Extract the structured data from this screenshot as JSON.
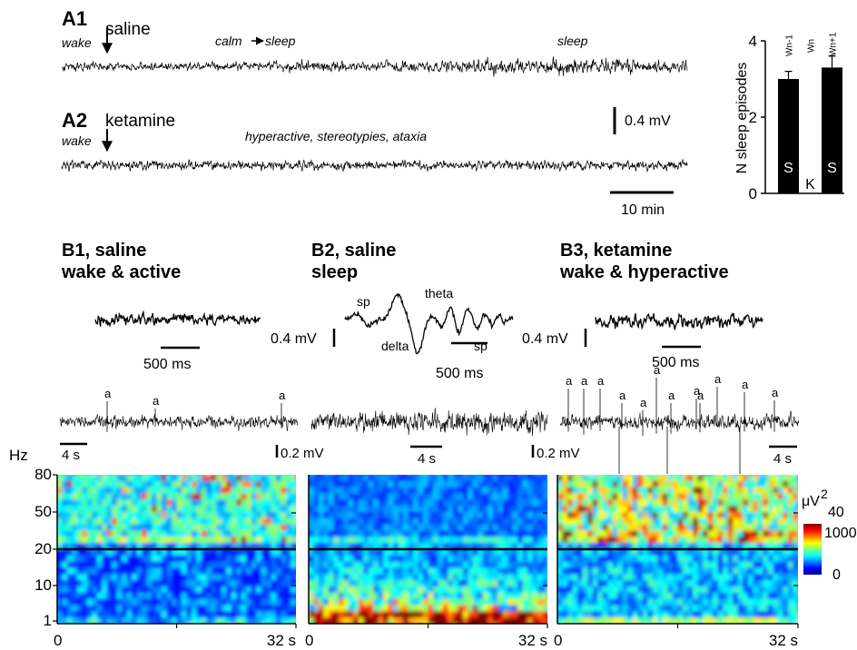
{
  "panel_a": {
    "a1": {
      "label": "A1",
      "drug": "saline",
      "state": "wake",
      "notes": [
        "calm",
        "sleep",
        "sleep"
      ]
    },
    "a2": {
      "label": "A2",
      "drug": "ketamine",
      "state": "wake",
      "notes": [
        "hyperactive, stereotypies, ataxia"
      ]
    },
    "voltage_scale": "0.4 mV",
    "time_scale": "10 min"
  },
  "chart_data": {
    "type": "bar",
    "y_label": "N sleep episodes",
    "categories": [
      "Wn-1",
      "Wn",
      "Wn+1"
    ],
    "values": [
      3,
      0,
      3.3
    ],
    "errors": [
      0.2,
      null,
      0.3
    ],
    "bar_labels": [
      "S",
      "K",
      "S"
    ],
    "color": "#000000",
    "ylim": [
      0,
      4
    ],
    "yticks": [
      0,
      2,
      4
    ]
  },
  "panel_b": [
    {
      "label": "B1, saline",
      "subtitle": "wake & active",
      "time_scale": "500 ms",
      "voltage_scale": "0.4 mV",
      "wave_notes": [],
      "events": [
        "a",
        "a",
        "a"
      ],
      "long_time_scale": "4 s",
      "long_voltage_scale": "0.2 mV",
      "x_start": "0",
      "x_end": "32 s"
    },
    {
      "label": "B2, saline",
      "subtitle": "sleep",
      "time_scale": "500 ms",
      "voltage_scale": "0.4 mV",
      "wave_notes": [
        "sp",
        "theta",
        "delta",
        "sp"
      ],
      "events": [],
      "long_time_scale": "4 s",
      "long_voltage_scale": "0.2 mV",
      "x_start": "0",
      "x_end": "32 s"
    },
    {
      "label": "B3, ketamine",
      "subtitle": "wake & hyperactive",
      "time_scale": "500 ms",
      "wave_notes": [],
      "events": [
        "a",
        "a",
        "a",
        "a",
        "a",
        "a",
        "a",
        "a",
        "a",
        "a",
        "a",
        "a"
      ],
      "long_time_scale": "4 s",
      "x_start": "0",
      "x_end": "32 s"
    }
  ],
  "spectrogram": {
    "y_label": "Hz",
    "yticks": [
      "80",
      "50",
      "20",
      "10",
      "1"
    ],
    "colorbar": {
      "unit": "μV",
      "unit_power": "2",
      "labels": [
        "40",
        "1000",
        "0"
      ]
    }
  }
}
